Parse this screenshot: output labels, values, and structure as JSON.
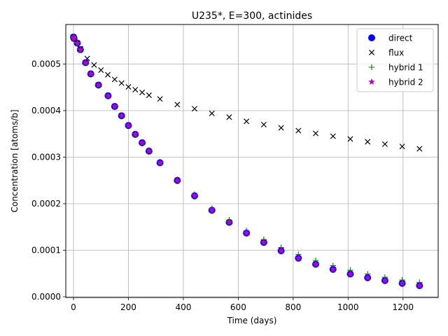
{
  "chart_data": {
    "type": "scatter",
    "title": "U235*, E=300, actinides",
    "xlabel": "Time (days)",
    "ylabel": "Concentration [atoms/b]",
    "xlim": [
      -28,
      1328
    ],
    "ylim": [
      -1.5e-06,
      0.000585
    ],
    "xticks": [
      0,
      200,
      400,
      600,
      800,
      1000,
      1200
    ],
    "xtick_labels": [
      "0",
      "200",
      "400",
      "600",
      "800",
      "1000",
      "1200"
    ],
    "yticks": [
      0.0,
      0.0001,
      0.0002,
      0.0003,
      0.0004,
      0.0005
    ],
    "ytick_labels": [
      "0.0000",
      "0.0001",
      "0.0002",
      "0.0003",
      "0.0004",
      "0.0005"
    ],
    "grid": true,
    "legend_position": "top-right",
    "series": [
      {
        "name": "direct",
        "marker": "circle",
        "color": "#0000ff",
        "x": [
          0,
          2,
          14,
          25,
          44,
          63,
          91,
          126,
          150,
          175,
          200,
          225,
          250,
          275,
          315,
          378,
          441,
          504,
          567,
          630,
          693,
          756,
          819,
          882,
          945,
          1008,
          1071,
          1134,
          1197,
          1260
        ],
        "y": [
          0.000558,
          0.000555,
          0.000545,
          0.000531,
          0.000503,
          0.000479,
          0.000455,
          0.000432,
          0.000409,
          0.000389,
          0.000368,
          0.000349,
          0.000331,
          0.000313,
          0.000288,
          0.00025,
          0.000217,
          0.000186,
          0.00016,
          0.000137,
          0.000117,
          9.9e-05,
          8.3e-05,
          7e-05,
          5.9e-05,
          4.9e-05,
          4.1e-05,
          3.5e-05,
          2.9e-05,
          2.4e-05
        ]
      },
      {
        "name": "flux",
        "marker": "x",
        "color": "#000000",
        "x": [
          0,
          2,
          14,
          25,
          50,
          75,
          100,
          125,
          150,
          175,
          200,
          225,
          250,
          275,
          315,
          378,
          441,
          504,
          567,
          630,
          693,
          756,
          819,
          882,
          945,
          1008,
          1071,
          1134,
          1197,
          1260
        ],
        "y": [
          0.000558,
          0.000555,
          0.000545,
          0.000533,
          0.000512,
          0.000498,
          0.000487,
          0.000477,
          0.000467,
          0.000459,
          0.000451,
          0.000445,
          0.000439,
          0.000433,
          0.000425,
          0.000413,
          0.000404,
          0.000394,
          0.000386,
          0.000377,
          0.00037,
          0.000363,
          0.000357,
          0.000351,
          0.000345,
          0.000339,
          0.000333,
          0.000328,
          0.000323,
          0.000318
        ]
      },
      {
        "name": "hybrid 1",
        "marker": "plus",
        "color": "#008000",
        "x": [
          0,
          2,
          14,
          25,
          44,
          63,
          91,
          126,
          150,
          175,
          200,
          225,
          250,
          275,
          315,
          378,
          441,
          504,
          567,
          630,
          693,
          756,
          819,
          882,
          945,
          1008,
          1071,
          1134,
          1197,
          1260
        ],
        "y": [
          0.000558,
          0.000555,
          0.000545,
          0.000531,
          0.000504,
          0.00048,
          0.000456,
          0.000433,
          0.00041,
          0.00039,
          0.000369,
          0.00035,
          0.000332,
          0.000315,
          0.00029,
          0.000252,
          0.00022,
          0.00019,
          0.000165,
          0.000142,
          0.000123,
          0.000106,
          9.1e-05,
          7.8e-05,
          6.7e-05,
          5.7e-05,
          4.9e-05,
          4.2e-05,
          3.6e-05,
          3.1e-05
        ]
      },
      {
        "name": "hybrid 2",
        "marker": "star",
        "color": "#bf00bf",
        "x": [
          0,
          2,
          14,
          25,
          44,
          63,
          91,
          126,
          150,
          175,
          200,
          225,
          250,
          275,
          315,
          378,
          441,
          504,
          567,
          630,
          693,
          756,
          819,
          882,
          945,
          1008,
          1071,
          1134,
          1197,
          1260
        ],
        "y": [
          0.000558,
          0.000555,
          0.000545,
          0.000531,
          0.000503,
          0.000479,
          0.000455,
          0.000432,
          0.000409,
          0.000389,
          0.000368,
          0.000349,
          0.000331,
          0.000313,
          0.000288,
          0.00025,
          0.000217,
          0.000186,
          0.00016,
          0.000137,
          0.000117,
          9.9e-05,
          8.3e-05,
          7e-05,
          5.9e-05,
          4.9e-05,
          4.1e-05,
          3.5e-05,
          2.9e-05,
          2.4e-05
        ]
      }
    ]
  }
}
